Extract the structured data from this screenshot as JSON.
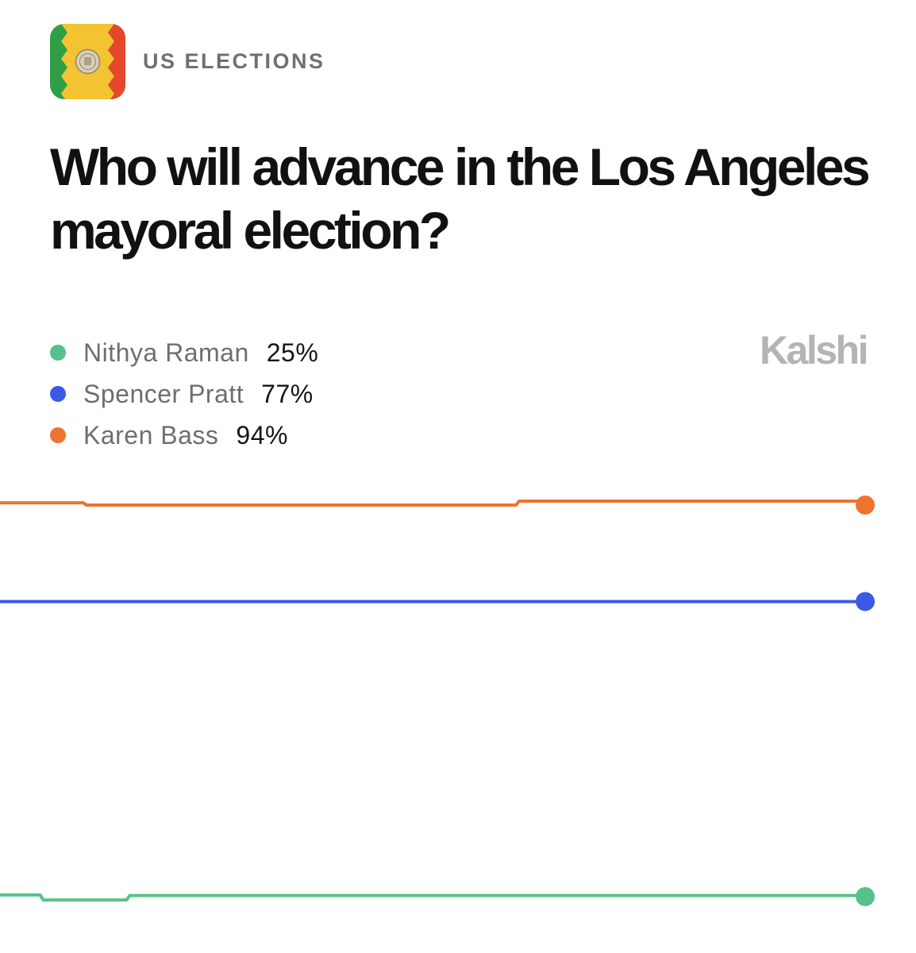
{
  "header": {
    "category": "US ELECTIONS",
    "category_icon": "los-angeles-flag-seal-icon",
    "flag_colors": {
      "left": "#2f9e44",
      "center": "#f3c331",
      "right": "#e4472b",
      "seal": "#d9d0b8"
    }
  },
  "headline": "Who will advance in the Los Angeles mayoral election?",
  "brand": "Kalshi",
  "chart_data": {
    "type": "line",
    "title": "",
    "xlabel": "",
    "ylabel": "",
    "x": [
      0,
      1,
      2,
      3,
      4,
      5,
      6,
      7,
      8,
      9,
      10,
      11,
      12,
      13,
      14,
      15,
      16,
      17,
      18,
      19,
      20
    ],
    "ylim": [
      24,
      95
    ],
    "grid": false,
    "legend_position": "top-left",
    "series": [
      {
        "name": "Nithya Raman",
        "label_value": "25%",
        "color": "#56c28a",
        "values": [
          25.3,
          24.4,
          24.4,
          25.2,
          25.2,
          25.2,
          25.2,
          25.2,
          25.2,
          25.2,
          25.2,
          25.2,
          25.2,
          25.2,
          25.2,
          25.2,
          25.2,
          25.2,
          25.2,
          25.2,
          25
        ]
      },
      {
        "name": "Spencer Pratt",
        "label_value": "77%",
        "color": "#3a5ae6",
        "values": [
          77,
          77,
          77,
          77,
          77,
          77,
          77,
          77,
          77,
          77,
          77,
          77,
          77,
          77,
          77,
          77,
          77,
          77,
          77,
          77,
          77
        ]
      },
      {
        "name": "Karen Bass",
        "label_value": "94%",
        "color": "#ee7331",
        "values": [
          94.4,
          94.4,
          94.0,
          94.0,
          94.0,
          94.0,
          94.0,
          94.0,
          94.0,
          94.0,
          94.0,
          94.0,
          94.7,
          94.7,
          94.7,
          94.7,
          94.7,
          94.7,
          94.7,
          94.7,
          94
        ]
      }
    ]
  }
}
